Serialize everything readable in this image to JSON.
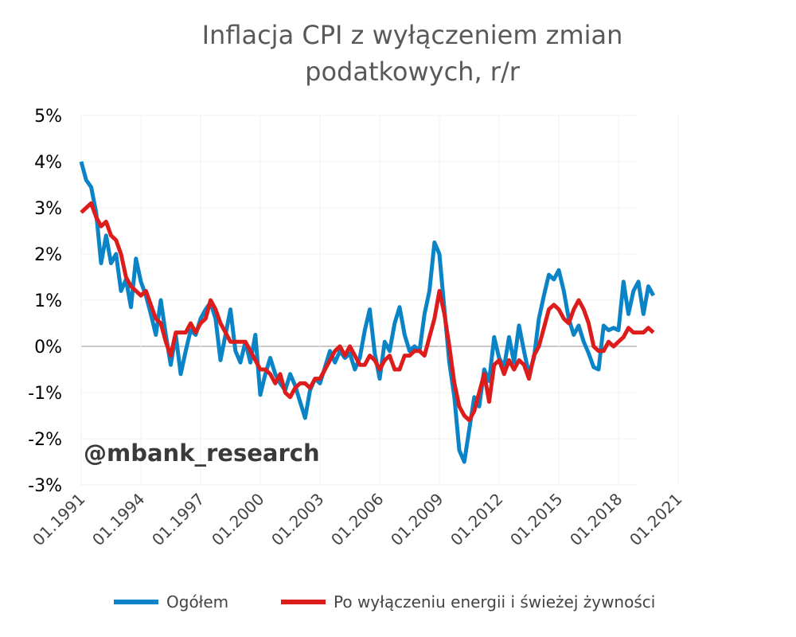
{
  "chart_data": {
    "type": "line",
    "title_lines": [
      "Inflacja CPI z wyłączeniem zmian",
      "podatkowych, r/r"
    ],
    "ylim": [
      -3,
      5
    ],
    "y_ticks": [
      "-3%",
      "-2%",
      "-1%",
      "0%",
      "1%",
      "2%",
      "3%",
      "4%",
      "5%"
    ],
    "x_ticks": [
      "01.1991",
      "01.1994",
      "01.1997",
      "01.2000",
      "01.2003",
      "01.2006",
      "01.2009",
      "01.2012",
      "01.2015",
      "01.2018",
      "01.2021"
    ],
    "grid": true,
    "legend_position": "bottom",
    "x": [
      "01.1991",
      "04.1991",
      "07.1991",
      "10.1991",
      "01.1992",
      "04.1992",
      "07.1992",
      "10.1992",
      "01.1993",
      "04.1993",
      "07.1993",
      "10.1993",
      "01.1994",
      "04.1994",
      "07.1994",
      "10.1994",
      "01.1995",
      "04.1995",
      "07.1995",
      "10.1995",
      "01.1996",
      "04.1996",
      "07.1996",
      "10.1996",
      "01.1997",
      "04.1997",
      "07.1997",
      "10.1997",
      "01.1998",
      "04.1998",
      "07.1998",
      "10.1998",
      "01.1999",
      "04.1999",
      "07.1999",
      "10.1999",
      "01.2000",
      "04.2000",
      "07.2000",
      "10.2000",
      "01.2001",
      "04.2001",
      "07.2001",
      "10.2001",
      "01.2002",
      "04.2002",
      "07.2002",
      "10.2002",
      "01.2003",
      "04.2003",
      "07.2003",
      "10.2003",
      "01.2004",
      "04.2004",
      "07.2004",
      "10.2004",
      "01.2005",
      "04.2005",
      "07.2005",
      "10.2005",
      "01.2006",
      "04.2006",
      "07.2006",
      "10.2006",
      "01.2007",
      "04.2007",
      "07.2007",
      "10.2007",
      "01.2008",
      "04.2008",
      "07.2008",
      "10.2008",
      "01.2009",
      "04.2009",
      "07.2009",
      "10.2009",
      "01.2010",
      "04.2010",
      "07.2010",
      "10.2010",
      "01.2011",
      "04.2011",
      "07.2011",
      "10.2011",
      "01.2012",
      "04.2012",
      "07.2012",
      "10.2012",
      "01.2013",
      "04.2013",
      "07.2013",
      "10.2013",
      "01.2014",
      "04.2014",
      "07.2014",
      "10.2014",
      "01.2015",
      "04.2015",
      "07.2015",
      "10.2015",
      "01.2016",
      "04.2016",
      "07.2016",
      "10.2016",
      "01.2017",
      "04.2017",
      "07.2017",
      "10.2017",
      "01.2018",
      "04.2018",
      "07.2018",
      "10.2018",
      "01.2019",
      "04.2019",
      "07.2019",
      "10.2019"
    ],
    "series": [
      {
        "name": "Ogółem",
        "color": "#0a84c6",
        "values": [
          4.0,
          3.6,
          3.45,
          2.9,
          1.8,
          2.4,
          1.8,
          2.0,
          1.2,
          1.45,
          0.85,
          1.9,
          1.4,
          1.1,
          0.7,
          0.25,
          1.0,
          0.25,
          -0.4,
          0.25,
          -0.6,
          -0.1,
          0.35,
          0.25,
          0.6,
          0.8,
          0.95,
          0.6,
          -0.3,
          0.25,
          0.8,
          -0.1,
          -0.35,
          0.1,
          -0.35,
          0.25,
          -1.05,
          -0.6,
          -0.25,
          -0.6,
          -0.8,
          -0.95,
          -0.6,
          -0.85,
          -1.2,
          -1.55,
          -0.95,
          -0.7,
          -0.8,
          -0.45,
          -0.1,
          -0.35,
          -0.1,
          -0.25,
          -0.15,
          -0.5,
          -0.25,
          0.35,
          0.8,
          -0.15,
          -0.7,
          0.1,
          -0.1,
          0.5,
          0.85,
          0.25,
          -0.1,
          0.0,
          -0.1,
          0.7,
          1.2,
          2.25,
          2.0,
          0.8,
          -0.35,
          -1.1,
          -2.25,
          -2.5,
          -1.8,
          -1.1,
          -1.3,
          -0.5,
          -0.75,
          0.2,
          -0.25,
          -0.45,
          0.2,
          -0.35,
          0.45,
          -0.1,
          -0.6,
          -0.25,
          0.6,
          1.1,
          1.55,
          1.45,
          1.65,
          1.2,
          0.6,
          0.25,
          0.45,
          0.1,
          -0.15,
          -0.45,
          -0.5,
          0.45,
          0.35,
          0.4,
          0.35,
          1.4,
          0.7,
          1.2,
          1.4,
          0.7,
          1.3,
          1.1
        ]
      },
      {
        "name": "Po wyłączeniu energii i świeżej żywności",
        "color": "#dd1c1c",
        "values": [
          2.9,
          3.0,
          3.1,
          2.8,
          2.6,
          2.7,
          2.4,
          2.3,
          2.0,
          1.5,
          1.3,
          1.2,
          1.1,
          1.2,
          0.9,
          0.6,
          0.5,
          0.1,
          -0.2,
          0.3,
          0.3,
          0.3,
          0.5,
          0.3,
          0.5,
          0.6,
          1.0,
          0.8,
          0.5,
          0.3,
          0.1,
          0.1,
          0.1,
          0.1,
          -0.1,
          -0.3,
          -0.5,
          -0.5,
          -0.6,
          -0.8,
          -0.6,
          -1.0,
          -1.1,
          -0.9,
          -0.8,
          -0.8,
          -0.9,
          -0.7,
          -0.7,
          -0.5,
          -0.3,
          -0.1,
          0.0,
          -0.2,
          0.0,
          -0.2,
          -0.4,
          -0.4,
          -0.2,
          -0.3,
          -0.5,
          -0.3,
          -0.2,
          -0.5,
          -0.5,
          -0.2,
          -0.2,
          -0.1,
          -0.1,
          -0.2,
          0.2,
          0.6,
          1.2,
          0.7,
          0.0,
          -0.8,
          -1.3,
          -1.5,
          -1.6,
          -1.4,
          -1.0,
          -0.6,
          -1.2,
          -0.4,
          -0.3,
          -0.6,
          -0.3,
          -0.5,
          -0.3,
          -0.4,
          -0.7,
          -0.2,
          0.0,
          0.4,
          0.8,
          0.9,
          0.8,
          0.6,
          0.5,
          0.8,
          1.0,
          0.8,
          0.5,
          0.0,
          -0.1,
          -0.1,
          0.1,
          0.0,
          0.1,
          0.2,
          0.4,
          0.3,
          0.3,
          0.3,
          0.4,
          0.3
        ]
      }
    ]
  },
  "watermark": "@mbank_research"
}
